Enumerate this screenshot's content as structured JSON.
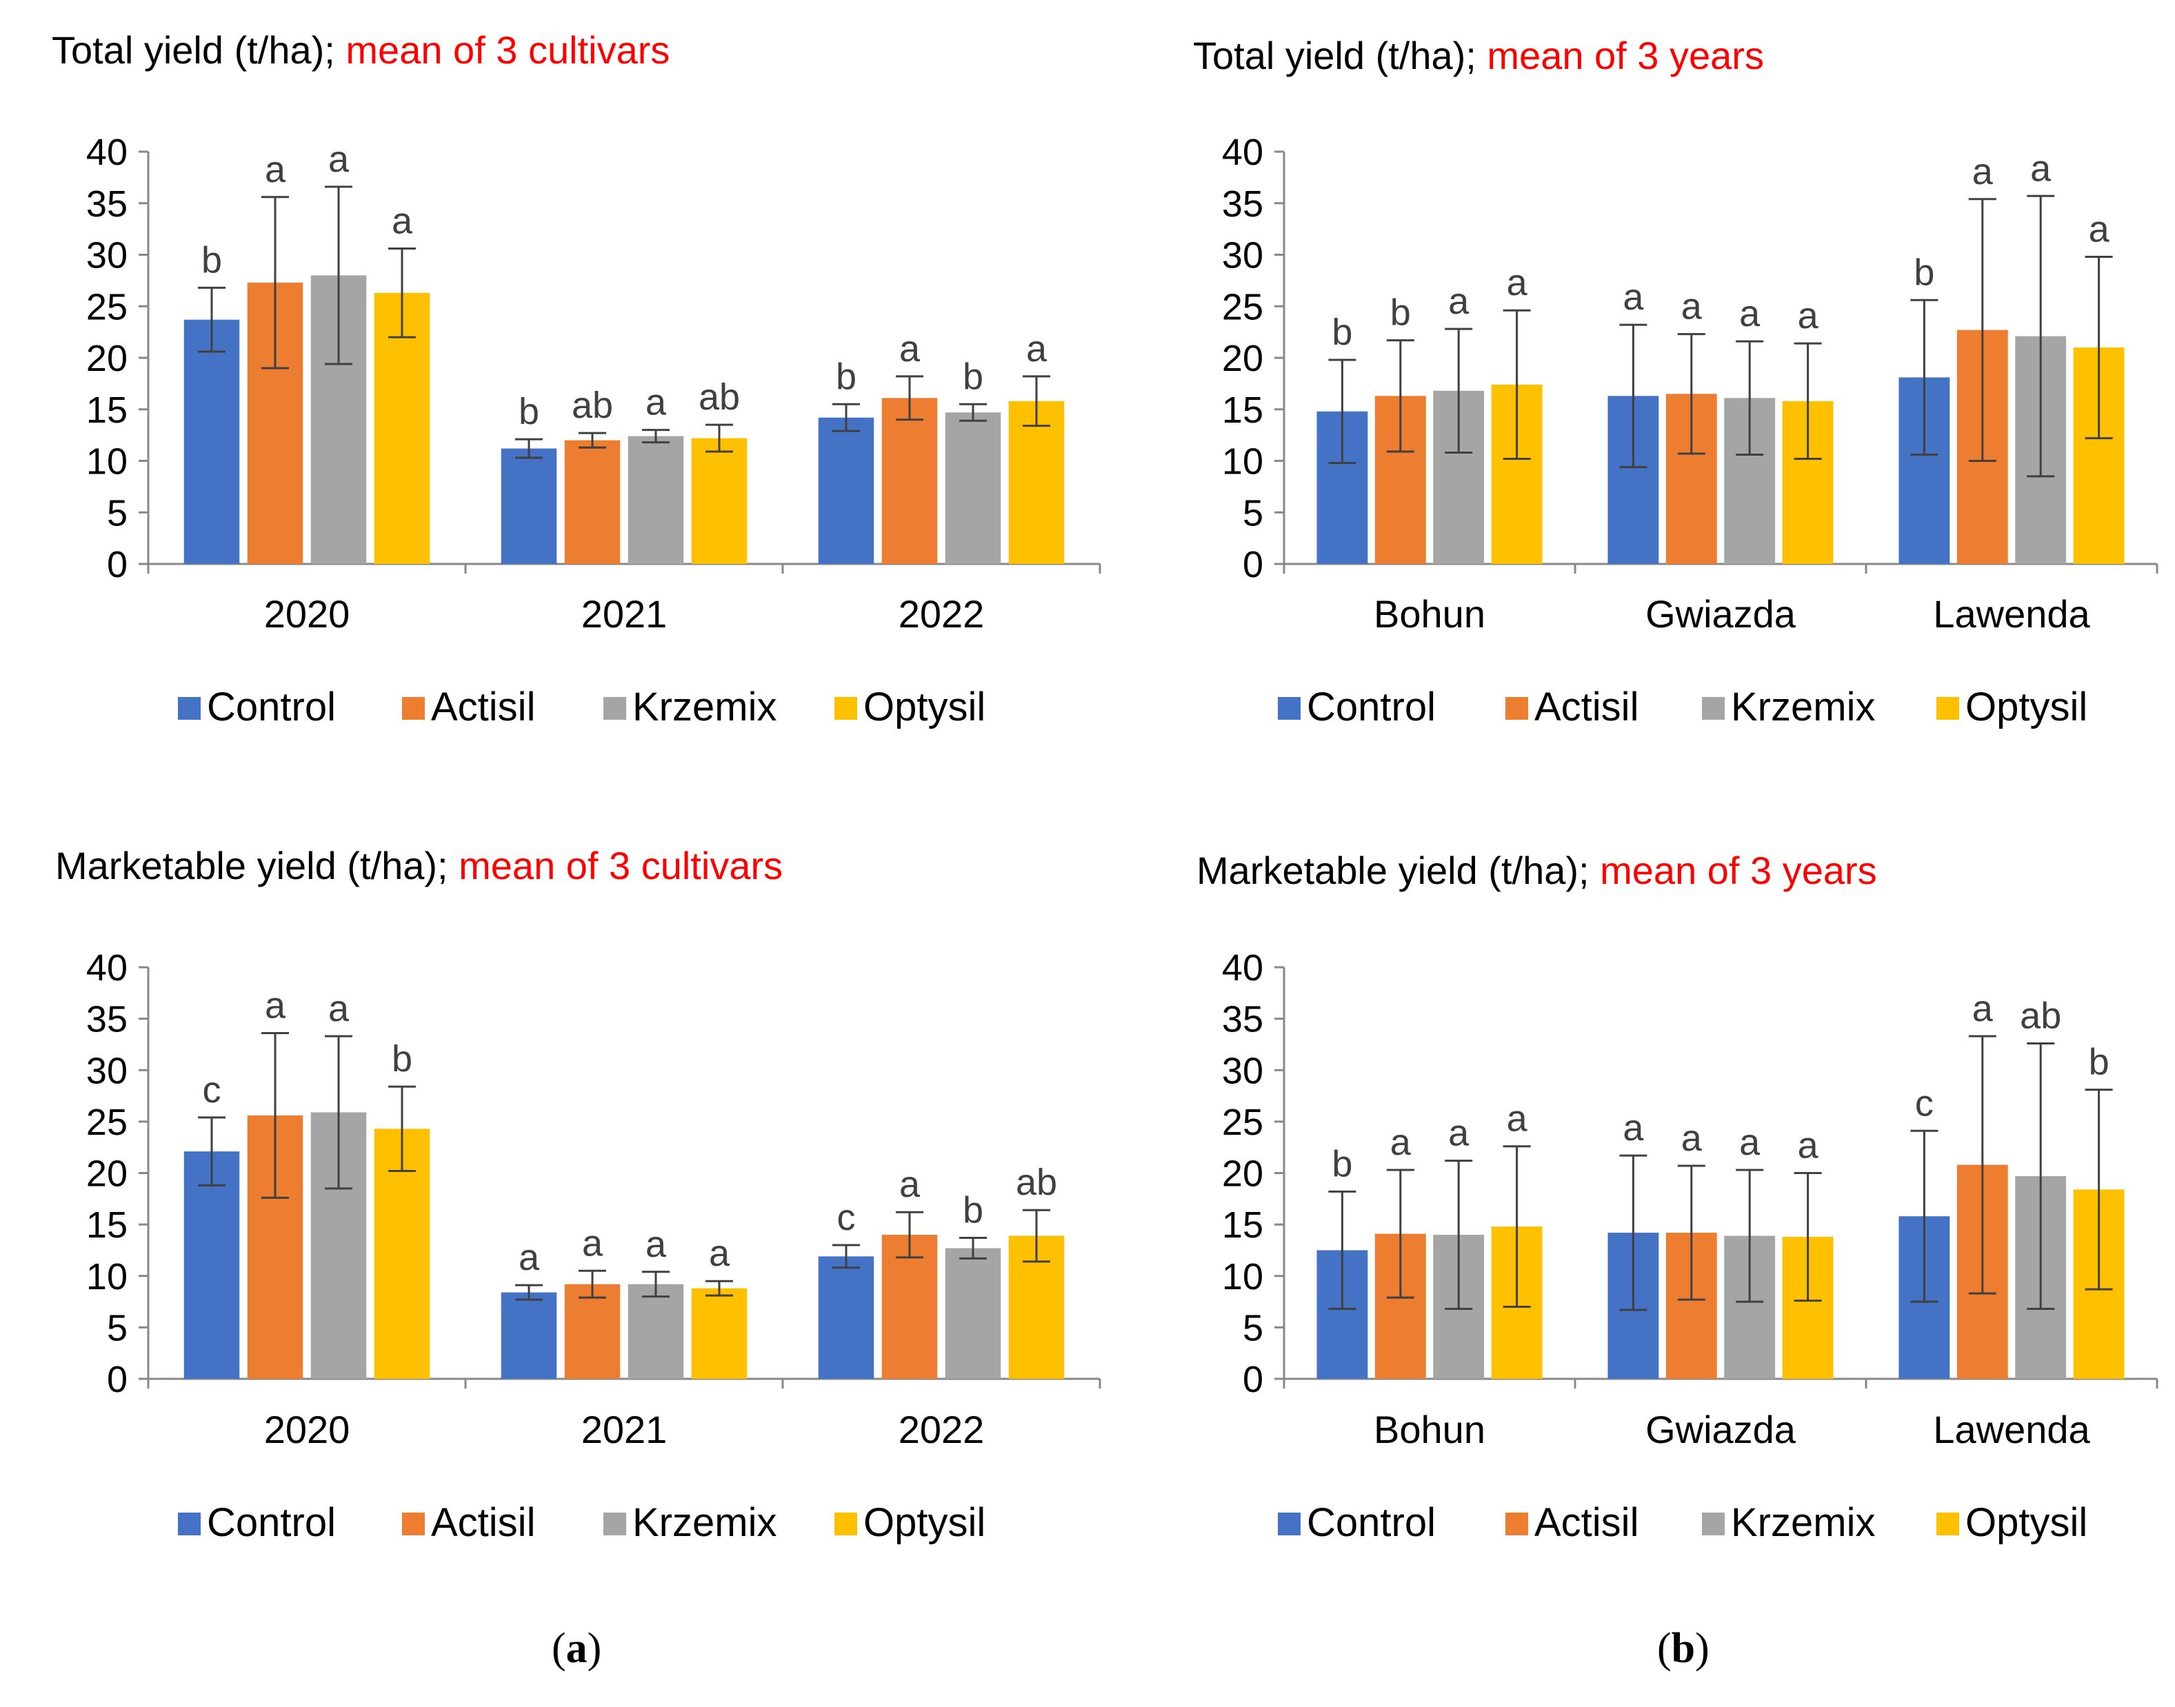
{
  "colors": {
    "Control": "#4472C4",
    "Actisil": "#ED7D31",
    "Krzemix": "#A5A5A5",
    "Optysil": "#FFC000",
    "subtitle_red": "#FF0000",
    "axis": "#888888",
    "error_bar": "#404040"
  },
  "panel_labels": {
    "a": "a",
    "b": "b"
  },
  "chart_data": [
    {
      "type": "bar",
      "title": "Total yield (t/ha);",
      "subtitle": "mean of 3 cultivars",
      "ylim": [
        0,
        40
      ],
      "yticks": [
        "0",
        "5",
        "10",
        "15",
        "20",
        "25",
        "30",
        "35",
        "40"
      ],
      "categories": [
        "2020",
        "2021",
        "2022"
      ],
      "legend": [
        "Control",
        "Actisil",
        "Krzemix",
        "Optysil"
      ],
      "series": [
        {
          "name": "Control",
          "values": [
            23.7,
            11.2,
            14.2
          ],
          "err": [
            3.1,
            0.9,
            1.3
          ],
          "letters": [
            "b",
            "b",
            "b"
          ]
        },
        {
          "name": "Actisil",
          "values": [
            27.3,
            12.0,
            16.1
          ],
          "err": [
            8.3,
            0.7,
            2.1
          ],
          "letters": [
            "a",
            "ab",
            "a"
          ]
        },
        {
          "name": "Krzemix",
          "values": [
            28.0,
            12.4,
            14.7
          ],
          "err": [
            8.6,
            0.6,
            0.8
          ],
          "letters": [
            "a",
            "a",
            "b"
          ]
        },
        {
          "name": "Optysil",
          "values": [
            26.3,
            12.2,
            15.8
          ],
          "err": [
            4.3,
            1.3,
            2.4
          ],
          "letters": [
            "a",
            "ab",
            "a"
          ]
        }
      ]
    },
    {
      "type": "bar",
      "title": "Total yield (t/ha);",
      "subtitle": "mean of 3 years",
      "ylim": [
        0,
        40
      ],
      "yticks": [
        "0",
        "5",
        "10",
        "15",
        "20",
        "25",
        "30",
        "35",
        "40"
      ],
      "categories": [
        "Bohun",
        "Gwiazda",
        "Lawenda"
      ],
      "legend": [
        "Control",
        "Actisil",
        "Krzemix",
        "Optysil"
      ],
      "series": [
        {
          "name": "Control",
          "values": [
            14.8,
            16.3,
            18.1
          ],
          "err": [
            5.0,
            6.9,
            7.5
          ],
          "letters": [
            "b",
            "a",
            "b"
          ]
        },
        {
          "name": "Actisil",
          "values": [
            16.3,
            16.5,
            22.7
          ],
          "err": [
            5.4,
            5.8,
            12.7
          ],
          "letters": [
            "b",
            "a",
            "a"
          ]
        },
        {
          "name": "Krzemix",
          "values": [
            16.8,
            16.1,
            22.1
          ],
          "err": [
            6.0,
            5.5,
            13.6
          ],
          "letters": [
            "a",
            "a",
            "a"
          ]
        },
        {
          "name": "Optysil",
          "values": [
            17.4,
            15.8,
            21.0
          ],
          "err": [
            7.2,
            5.6,
            8.8
          ],
          "letters": [
            "a",
            "a",
            "a"
          ]
        }
      ]
    },
    {
      "type": "bar",
      "title": "Marketable yield (t/ha);",
      "subtitle": "mean of 3 cultivars",
      "ylim": [
        0,
        40
      ],
      "yticks": [
        "0",
        "5",
        "10",
        "15",
        "20",
        "25",
        "30",
        "35",
        "40"
      ],
      "categories": [
        "2020",
        "2021",
        "2022"
      ],
      "legend": [
        "Control",
        "Actisil",
        "Krzemix",
        "Optysil"
      ],
      "series": [
        {
          "name": "Control",
          "values": [
            22.1,
            8.4,
            11.9
          ],
          "err": [
            3.3,
            0.7,
            1.1
          ],
          "letters": [
            "c",
            "a",
            "c"
          ]
        },
        {
          "name": "Actisil",
          "values": [
            25.6,
            9.2,
            14.0
          ],
          "err": [
            8.0,
            1.3,
            2.2
          ],
          "letters": [
            "a",
            "a",
            "a"
          ]
        },
        {
          "name": "Krzemix",
          "values": [
            25.9,
            9.2,
            12.7
          ],
          "err": [
            7.4,
            1.2,
            1.0
          ],
          "letters": [
            "a",
            "a",
            "b"
          ]
        },
        {
          "name": "Optysil",
          "values": [
            24.3,
            8.8,
            13.9
          ],
          "err": [
            4.1,
            0.7,
            2.5
          ],
          "letters": [
            "b",
            "a",
            "ab"
          ]
        }
      ]
    },
    {
      "type": "bar",
      "title": "Marketable yield (t/ha);",
      "subtitle": "mean of 3 years",
      "ylim": [
        0,
        40
      ],
      "yticks": [
        "0",
        "5",
        "10",
        "15",
        "20",
        "25",
        "30",
        "35",
        "40"
      ],
      "categories": [
        "Bohun",
        "Gwiazda",
        "Lawenda"
      ],
      "legend": [
        "Control",
        "Actisil",
        "Krzemix",
        "Optysil"
      ],
      "series": [
        {
          "name": "Control",
          "values": [
            12.5,
            14.2,
            15.8
          ],
          "err": [
            5.7,
            7.5,
            8.3
          ],
          "letters": [
            "b",
            "a",
            "c"
          ]
        },
        {
          "name": "Actisil",
          "values": [
            14.1,
            14.2,
            20.8
          ],
          "err": [
            6.2,
            6.5,
            12.5
          ],
          "letters": [
            "a",
            "a",
            "a"
          ]
        },
        {
          "name": "Krzemix",
          "values": [
            14.0,
            13.9,
            19.7
          ],
          "err": [
            7.2,
            6.4,
            12.9
          ],
          "letters": [
            "a",
            "a",
            "ab"
          ]
        },
        {
          "name": "Optysil",
          "values": [
            14.8,
            13.8,
            18.4
          ],
          "err": [
            7.8,
            6.2,
            9.7
          ],
          "letters": [
            "a",
            "a",
            "b"
          ]
        }
      ]
    }
  ]
}
